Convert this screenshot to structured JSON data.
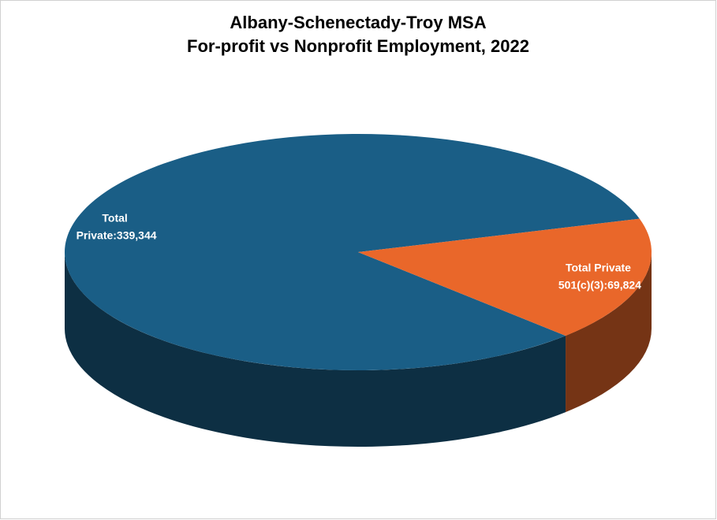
{
  "chart_data": {
    "type": "pie3d",
    "title": "Albany-Schenectady-Troy MSA",
    "subtitle": "For-profit vs Nonprofit Employment, 2022",
    "values": [
      339344,
      69824
    ],
    "value_labels": [
      "Total Private:339,344",
      "Total Private 501(c)(3):69,824"
    ],
    "colors": [
      "#1a5e86",
      "#e9672a"
    ]
  }
}
